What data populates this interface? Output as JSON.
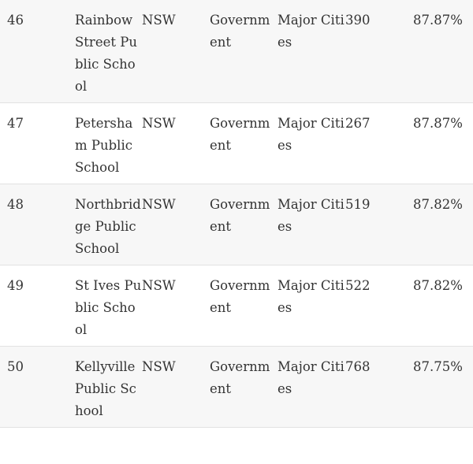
{
  "rows": [
    {
      "rank": "46",
      "name": "Rainbow Street Public School",
      "state": "NSW",
      "sector": "Government",
      "location": "Major Cities",
      "enrolments": "390",
      "score": "87.87%"
    },
    {
      "rank": "47",
      "name": "Petersham Public School",
      "state": "NSW",
      "sector": "Government",
      "location": "Major Cities",
      "enrolments": "267",
      "score": "87.87%"
    },
    {
      "rank": "48",
      "name": "Northbridge Public School",
      "state": "NSW",
      "sector": "Government",
      "location": "Major Cities",
      "enrolments": "519",
      "score": "87.82%"
    },
    {
      "rank": "49",
      "name": "St Ives Public School",
      "state": "NSW",
      "sector": "Government",
      "location": "Major Cities",
      "enrolments": "522",
      "score": "87.82%"
    },
    {
      "rank": "50",
      "name": "Kellyville Public School",
      "state": "NSW",
      "sector": "Government",
      "location": "Major Cities",
      "enrolments": "768",
      "score": "87.75%"
    }
  ]
}
